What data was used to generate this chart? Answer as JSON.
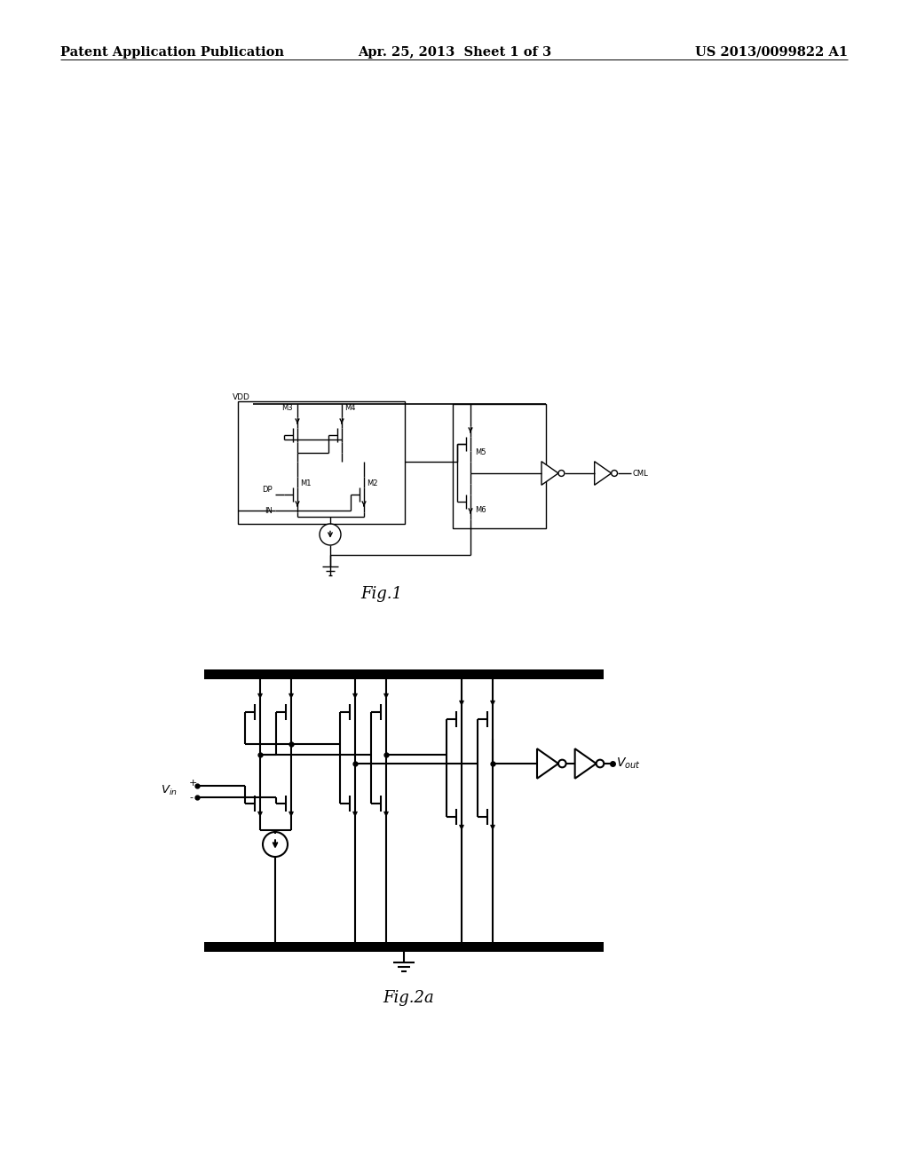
{
  "page_header_left": "Patent Application Publication",
  "page_header_center": "Apr. 25, 2013  Sheet 1 of 3",
  "page_header_right": "US 2013/0099822 A1",
  "fig1_label": "Fig.1",
  "fig2a_label": "Fig.2a",
  "background_color": "#ffffff",
  "line_color": "#000000",
  "header_fontsize": 10.5,
  "label_fontsize": 13,
  "small_fontsize": 6.5
}
